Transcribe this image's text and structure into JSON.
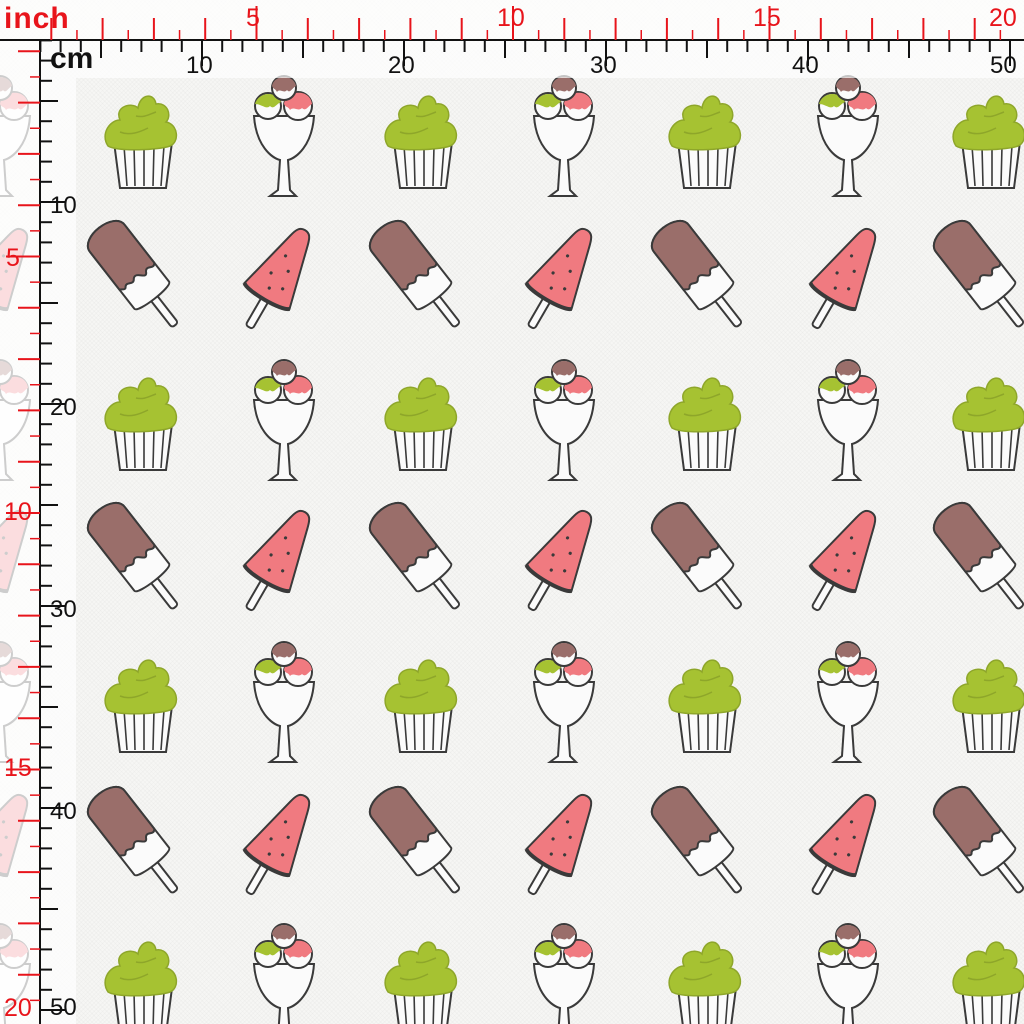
{
  "units": {
    "inch": "inch",
    "cm": "cm"
  },
  "top_inch_labels": [
    "5",
    "10",
    "15",
    "20"
  ],
  "top_cm_labels": [
    "10",
    "20",
    "30",
    "40",
    "50"
  ],
  "left_inch_labels": [
    "5",
    "10",
    "15",
    "20"
  ],
  "left_cm_labels": [
    "10",
    "20",
    "30",
    "40",
    "50"
  ],
  "colors": {
    "inch_ruler": "#e8141b",
    "cm_ruler": "#111111",
    "matcha": "#a6c232",
    "strawberry": "#f07a80",
    "chocolate": "#9a6e6a",
    "outline": "#3a3a3a",
    "fabric": "#f6f6f4"
  },
  "motifs": [
    "cupcake-icon",
    "sundae-icon",
    "chocolate-popsicle-icon",
    "watermelon-popsicle-icon"
  ]
}
